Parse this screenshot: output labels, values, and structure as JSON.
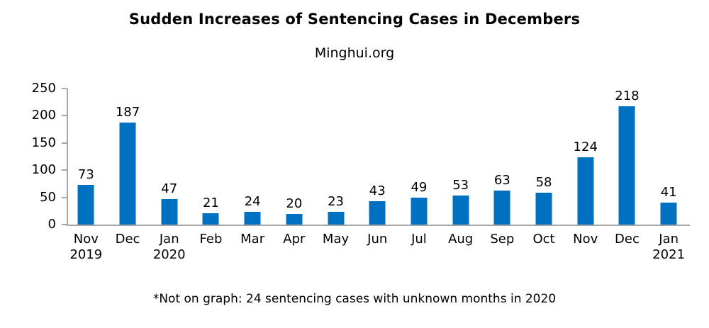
{
  "title": "Sudden Increases of Sentencing Cases in Decembers",
  "subtitle": "Minghui.org",
  "footnote": "*Not on graph: 24 sentencing cases with unknown months in 2020",
  "colors": {
    "bar": "#0070C0",
    "axis": "#A6A6A6",
    "text": "#000000",
    "background": "#FFFFFF"
  },
  "chart_data": {
    "type": "bar",
    "title": "Sudden Increases of Sentencing Cases in Decembers",
    "subtitle": "Minghui.org",
    "footnote": "*Not on graph: 24 sentencing cases with unknown months in 2020",
    "categories": [
      "Nov\n2019",
      "Dec",
      "Jan\n2020",
      "Feb",
      "Mar",
      "Apr",
      "May",
      "Jun",
      "Jul",
      "Aug",
      "Sep",
      "Oct",
      "Nov",
      "Dec",
      "Jan\n2021"
    ],
    "values": [
      73,
      187,
      47,
      21,
      24,
      20,
      23,
      43,
      49,
      53,
      63,
      58,
      124,
      218,
      41
    ],
    "xlabel": "",
    "ylabel": "",
    "ylim": [
      0,
      250
    ],
    "yticks": [
      0,
      50,
      100,
      150,
      200,
      250
    ],
    "grid": false,
    "legend": false,
    "data_labels": true,
    "bar_color": "#0070C0"
  }
}
